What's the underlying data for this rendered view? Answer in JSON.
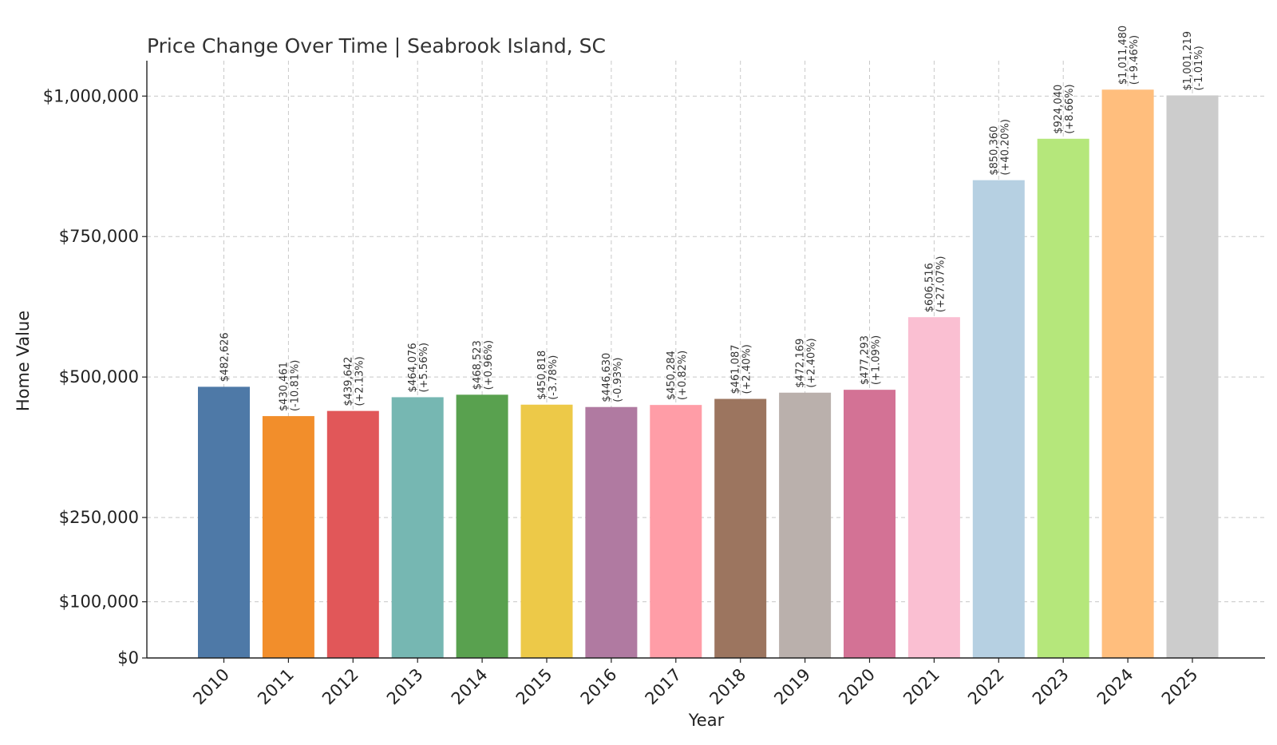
{
  "chart_data": {
    "type": "bar",
    "title": "Price Change Over Time | Seabrook Island, SC",
    "xlabel": "Year",
    "ylabel": "Home Value",
    "ylim": [
      0,
      1063000
    ],
    "grid": true,
    "yticks": [
      {
        "value": 0,
        "label": "$0"
      },
      {
        "value": 100000,
        "label": "$100,000"
      },
      {
        "value": 250000,
        "label": "$250,000"
      },
      {
        "value": 500000,
        "label": "$500,000"
      },
      {
        "value": 750000,
        "label": "$750,000"
      },
      {
        "value": 1000000,
        "label": "$1,000,000"
      }
    ],
    "categories": [
      "2010",
      "2011",
      "2012",
      "2013",
      "2014",
      "2015",
      "2016",
      "2017",
      "2018",
      "2019",
      "2020",
      "2021",
      "2022",
      "2023",
      "2024",
      "2025"
    ],
    "values": [
      482626,
      430461,
      439642,
      464076,
      468523,
      450818,
      446630,
      450284,
      461087,
      472169,
      477293,
      606516,
      850360,
      924040,
      1011480,
      1001219
    ],
    "value_labels": [
      "$482,626",
      "$430,461",
      "$439,642",
      "$464,076",
      "$468,523",
      "$450,818",
      "$446,630",
      "$450,284",
      "$461,087",
      "$472,169",
      "$477,293",
      "$606,516",
      "$850,360",
      "$924,040",
      "$1,011,480",
      "$1,001,219"
    ],
    "change_labels": [
      "",
      "(-10.81%)",
      "(+2.13%)",
      "(+5.56%)",
      "(+0.96%)",
      "(-3.78%)",
      "(-0.93%)",
      "(+0.82%)",
      "(+2.40%)",
      "(+2.40%)",
      "(+1.09%)",
      "(+27.07%)",
      "(+40.20%)",
      "(+8.66%)",
      "(+9.46%)",
      "(-1.01%)"
    ],
    "colors": [
      "#4e79a7",
      "#f28e2b",
      "#e15759",
      "#76b7b2",
      "#59a14f",
      "#edc948",
      "#b07aa1",
      "#ff9da7",
      "#9c755f",
      "#bab0ac",
      "#d37295",
      "#fabfd2",
      "#b6d0e2",
      "#b5e77b",
      "#ffbe7d",
      "#cccccc"
    ]
  }
}
